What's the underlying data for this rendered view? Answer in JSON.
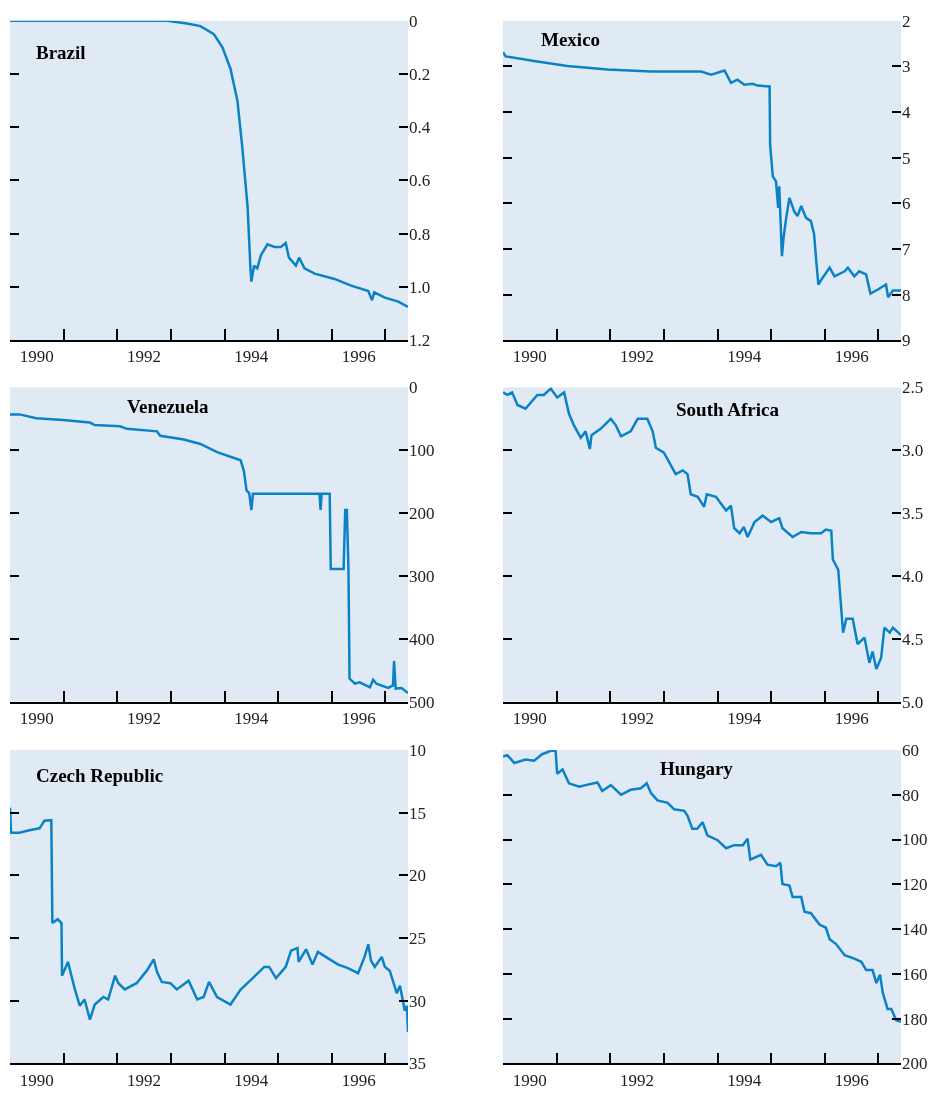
{
  "chart_data": [
    {
      "type": "line",
      "title": "Brazil",
      "x": [
        1990.0,
        1991.0,
        1992.0,
        1992.93,
        1993.3,
        1993.55,
        1993.8,
        1993.96,
        1994.11,
        1994.24,
        1994.33,
        1994.43,
        1994.48,
        1994.5,
        1994.55,
        1994.61,
        1994.68,
        1994.8,
        1994.93,
        1995.05,
        1995.14,
        1995.2,
        1995.33,
        1995.39,
        1995.49,
        1995.68,
        1996.05,
        1996.36,
        1996.68,
        1996.75,
        1996.79,
        1996.99,
        1997.24,
        1997.42
      ],
      "series": [
        {
          "color": "#0b82c6",
          "values": [
            0,
            0,
            0,
            0,
            0.01,
            0.02,
            0.05,
            0.1,
            0.18,
            0.3,
            0.475,
            0.7,
            0.92,
            0.98,
            0.92,
            0.93,
            0.88,
            0.84,
            0.85,
            0.85,
            0.835,
            0.89,
            0.92,
            0.89,
            0.93,
            0.95,
            0.97,
            0.995,
            1.015,
            1.05,
            1.02,
            1.04,
            1.055,
            1.075
          ]
        }
      ],
      "xlim": [
        1990,
        1997.42
      ],
      "ylim": [
        1.2,
        0
      ],
      "xticks": [
        {
          "value": 1990.5,
          "label": "1990"
        },
        {
          "value": 1992.5,
          "label": "1992"
        },
        {
          "value": 1994.5,
          "label": "1994"
        },
        {
          "value": 1996.5,
          "label": "1996"
        },
        {
          "value": 1990,
          "label": null
        },
        {
          "value": 1991,
          "label": null
        },
        {
          "value": 1992,
          "label": null
        },
        {
          "value": 1993,
          "label": null
        },
        {
          "value": 1994,
          "label": null
        },
        {
          "value": 1995,
          "label": null
        },
        {
          "value": 1996,
          "label": null
        },
        {
          "value": 1997,
          "label": null
        }
      ],
      "yticks": [
        0,
        0.2,
        0.4,
        0.6,
        0.8,
        {
          "value": 1.0,
          "label": "1.0"
        },
        {
          "value": 1.2,
          "label": "1.2"
        }
      ]
    },
    {
      "type": "line",
      "title": "Mexico",
      "x": [
        1990.0,
        1990.05,
        1990.58,
        1991.2,
        1991.95,
        1992.76,
        1993.69,
        1993.88,
        1994.13,
        1994.25,
        1994.37,
        1994.5,
        1994.65,
        1994.75,
        1994.97,
        1994.98,
        1995.03,
        1995.09,
        1995.13,
        1995.15,
        1995.2,
        1995.23,
        1995.28,
        1995.34,
        1995.43,
        1995.49,
        1995.56,
        1995.65,
        1995.74,
        1995.8,
        1995.84,
        1995.88,
        1995.96,
        1996.09,
        1996.18,
        1996.37,
        1996.43,
        1996.55,
        1996.64,
        1996.77,
        1996.85,
        1996.99,
        1997.14,
        1997.18,
        1997.27,
        1997.42
      ],
      "series": [
        {
          "color": "#0b82c6",
          "values": [
            2.69,
            2.78,
            2.88,
            2.99,
            3.07,
            3.11,
            3.11,
            3.18,
            3.09,
            3.36,
            3.29,
            3.4,
            3.38,
            3.42,
            3.44,
            4.72,
            5.41,
            5.52,
            6.1,
            5.63,
            7.16,
            6.76,
            6.32,
            5.88,
            6.18,
            6.28,
            6.06,
            6.32,
            6.39,
            6.68,
            7.27,
            7.78,
            7.63,
            7.41,
            7.6,
            7.49,
            7.41,
            7.6,
            7.49,
            7.56,
            7.98,
            7.89,
            7.78,
            8.06,
            7.91,
            7.91
          ]
        }
      ],
      "xlim": [
        1990,
        1997.42
      ],
      "ylim": [
        9,
        2
      ],
      "xticks": [
        {
          "value": 1990.5,
          "label": "1990"
        },
        {
          "value": 1992.5,
          "label": "1992"
        },
        {
          "value": 1994.5,
          "label": "1994"
        },
        {
          "value": 1996.5,
          "label": "1996"
        },
        {
          "value": 1990,
          "label": null
        },
        {
          "value": 1991,
          "label": null
        },
        {
          "value": 1992,
          "label": null
        },
        {
          "value": 1993,
          "label": null
        },
        {
          "value": 1994,
          "label": null
        },
        {
          "value": 1995,
          "label": null
        },
        {
          "value": 1996,
          "label": null
        },
        {
          "value": 1997,
          "label": null
        }
      ],
      "yticks": [
        2,
        3,
        4,
        5,
        6,
        7,
        8,
        9
      ]
    },
    {
      "type": "line",
      "title": "Venezuela",
      "x": [
        1990.0,
        1990.18,
        1990.49,
        1990.99,
        1991.49,
        1991.58,
        1992.05,
        1992.18,
        1992.74,
        1992.8,
        1993.24,
        1993.55,
        1993.86,
        1994.3,
        1994.36,
        1994.41,
        1994.46,
        1994.5,
        1994.53,
        1994.8,
        1995.77,
        1995.79,
        1995.81,
        1995.96,
        1995.98,
        1996.22,
        1996.25,
        1996.28,
        1996.31,
        1996.33,
        1996.43,
        1996.52,
        1996.71,
        1996.77,
        1996.83,
        1997.05,
        1997.14,
        1997.16,
        1997.19,
        1997.3,
        1997.42
      ],
      "series": [
        {
          "color": "#0b82c6",
          "values": [
            43,
            43,
            49,
            52,
            56,
            60,
            62,
            66,
            70,
            77,
            83,
            90,
            103,
            116,
            133,
            164,
            168,
            195,
            169,
            169,
            169,
            195,
            169,
            169,
            289,
            289,
            195,
            195,
            289,
            463,
            471,
            469,
            477,
            465,
            471,
            478,
            474,
            435,
            479,
            478,
            486
          ]
        }
      ],
      "xlim": [
        1990,
        1997.42
      ],
      "ylim": [
        500,
        0
      ],
      "xticks": [
        {
          "value": 1990.5,
          "label": "1990"
        },
        {
          "value": 1992.5,
          "label": "1992"
        },
        {
          "value": 1994.5,
          "label": "1994"
        },
        {
          "value": 1996.5,
          "label": "1996"
        },
        {
          "value": 1990,
          "label": null
        },
        {
          "value": 1991,
          "label": null
        },
        {
          "value": 1992,
          "label": null
        },
        {
          "value": 1993,
          "label": null
        },
        {
          "value": 1994,
          "label": null
        },
        {
          "value": 1995,
          "label": null
        },
        {
          "value": 1996,
          "label": null
        },
        {
          "value": 1997,
          "label": null
        }
      ],
      "yticks": [
        0,
        100,
        200,
        300,
        400,
        500
      ]
    },
    {
      "type": "line",
      "title": "South Africa",
      "x": [
        1990.0,
        1990.08,
        1990.17,
        1990.27,
        1990.42,
        1990.64,
        1990.76,
        1990.89,
        1991.01,
        1991.14,
        1991.23,
        1991.32,
        1991.45,
        1991.54,
        1991.62,
        1991.65,
        1991.82,
        1992.01,
        1992.1,
        1992.2,
        1992.38,
        1992.51,
        1992.69,
        1992.79,
        1992.85,
        1993.0,
        1993.13,
        1993.22,
        1993.35,
        1993.44,
        1993.5,
        1993.63,
        1993.75,
        1993.8,
        1993.97,
        1994.16,
        1994.25,
        1994.31,
        1994.41,
        1994.49,
        1994.56,
        1994.69,
        1994.84,
        1995.0,
        1995.15,
        1995.21,
        1995.4,
        1995.56,
        1995.74,
        1995.93,
        1996.02,
        1996.12,
        1996.15,
        1996.25,
        1996.34,
        1996.4,
        1996.52,
        1996.61,
        1996.74,
        1996.83,
        1996.89,
        1996.96,
        1997.05,
        1997.11,
        1997.21,
        1997.27,
        1997.42
      ],
      "series": [
        {
          "color": "#0b82c6",
          "values": [
            2.54,
            2.56,
            2.54,
            2.64,
            2.67,
            2.56,
            2.56,
            2.51,
            2.58,
            2.54,
            2.71,
            2.8,
            2.9,
            2.85,
            2.99,
            2.88,
            2.83,
            2.75,
            2.8,
            2.89,
            2.85,
            2.75,
            2.75,
            2.85,
            2.98,
            3.02,
            3.12,
            3.19,
            3.16,
            3.19,
            3.35,
            3.37,
            3.45,
            3.35,
            3.37,
            3.48,
            3.44,
            3.62,
            3.66,
            3.61,
            3.69,
            3.57,
            3.52,
            3.57,
            3.54,
            3.62,
            3.69,
            3.65,
            3.66,
            3.66,
            3.63,
            3.64,
            3.87,
            3.95,
            4.45,
            4.34,
            4.34,
            4.54,
            4.49,
            4.69,
            4.6,
            4.74,
            4.65,
            4.41,
            4.45,
            4.41,
            4.47
          ]
        }
      ],
      "xlim": [
        1990,
        1997.42
      ],
      "ylim": [
        5.0,
        2.5
      ],
      "xticks": [
        {
          "value": 1990.5,
          "label": "1990"
        },
        {
          "value": 1992.5,
          "label": "1992"
        },
        {
          "value": 1994.5,
          "label": "1994"
        },
        {
          "value": 1996.5,
          "label": "1996"
        },
        {
          "value": 1990,
          "label": null
        },
        {
          "value": 1991,
          "label": null
        },
        {
          "value": 1992,
          "label": null
        },
        {
          "value": 1993,
          "label": null
        },
        {
          "value": 1994,
          "label": null
        },
        {
          "value": 1995,
          "label": null
        },
        {
          "value": 1996,
          "label": null
        },
        {
          "value": 1997,
          "label": null
        }
      ],
      "yticks": [
        2.5,
        {
          "value": 3.0,
          "label": "3.0"
        },
        3.5,
        {
          "value": 4.0,
          "label": "4.0"
        },
        4.5,
        {
          "value": 5.0,
          "label": "5.0"
        }
      ]
    },
    {
      "type": "line",
      "title": "Czech Republic",
      "x": [
        1990.0,
        1990.02,
        1990.18,
        1990.36,
        1990.55,
        1990.64,
        1990.77,
        1990.79,
        1990.89,
        1990.96,
        1990.97,
        1991.08,
        1991.21,
        1991.3,
        1991.39,
        1991.49,
        1991.58,
        1991.74,
        1991.83,
        1991.96,
        1992.02,
        1992.14,
        1992.36,
        1992.55,
        1992.68,
        1992.74,
        1992.83,
        1992.99,
        1993.11,
        1993.33,
        1993.49,
        1993.61,
        1993.71,
        1993.86,
        1994.11,
        1994.3,
        1994.55,
        1994.74,
        1994.83,
        1994.96,
        1995.14,
        1995.24,
        1995.36,
        1995.38,
        1995.52,
        1995.64,
        1995.74,
        1995.96,
        1996.11,
        1996.3,
        1996.49,
        1996.61,
        1996.68,
        1996.73,
        1996.8,
        1996.93,
        1996.99,
        1997.08,
        1997.21,
        1997.27,
        1997.36,
        1997.4,
        1997.42
      ],
      "series": [
        {
          "color": "#0b82c6",
          "values": [
            14.6,
            16.6,
            16.6,
            16.4,
            16.25,
            15.65,
            15.6,
            23.8,
            23.5,
            23.8,
            28.0,
            26.9,
            29.1,
            30.4,
            29.9,
            31.5,
            30.3,
            29.7,
            29.9,
            28.0,
            28.6,
            29.1,
            28.6,
            27.6,
            26.7,
            27.7,
            28.5,
            28.6,
            29.1,
            28.4,
            29.9,
            29.7,
            28.5,
            29.7,
            30.3,
            29.1,
            28.1,
            27.3,
            27.3,
            28.2,
            27.3,
            26.0,
            25.8,
            26.9,
            25.9,
            27.1,
            26.1,
            26.7,
            27.1,
            27.4,
            27.8,
            26.5,
            25.5,
            26.8,
            27.3,
            26.5,
            27.3,
            27.6,
            29.4,
            28.8,
            30.8,
            30.4,
            32.5
          ]
        }
      ],
      "xlim": [
        1990,
        1997.42
      ],
      "ylim": [
        35,
        10
      ],
      "xticks": [
        {
          "value": 1990.5,
          "label": "1990"
        },
        {
          "value": 1992.5,
          "label": "1992"
        },
        {
          "value": 1994.5,
          "label": "1994"
        },
        {
          "value": 1996.5,
          "label": "1996"
        },
        {
          "value": 1990,
          "label": null
        },
        {
          "value": 1991,
          "label": null
        },
        {
          "value": 1992,
          "label": null
        },
        {
          "value": 1993,
          "label": null
        },
        {
          "value": 1994,
          "label": null
        },
        {
          "value": 1995,
          "label": null
        },
        {
          "value": 1996,
          "label": null
        },
        {
          "value": 1997,
          "label": null
        }
      ],
      "yticks": [
        10,
        15,
        20,
        25,
        30,
        35
      ]
    },
    {
      "type": "line",
      "title": "Hungary",
      "x": [
        1990.0,
        1990.08,
        1990.21,
        1990.42,
        1990.58,
        1990.73,
        1990.89,
        1990.98,
        1991.01,
        1991.11,
        1991.23,
        1991.42,
        1991.54,
        1991.76,
        1991.85,
        1992.01,
        1992.2,
        1992.38,
        1992.57,
        1992.68,
        1992.76,
        1992.88,
        1993.07,
        1993.19,
        1993.38,
        1993.44,
        1993.53,
        1993.62,
        1993.72,
        1993.81,
        1994.0,
        1994.16,
        1994.31,
        1994.47,
        1994.56,
        1994.61,
        1994.81,
        1994.93,
        1995.09,
        1995.17,
        1995.21,
        1995.34,
        1995.4,
        1995.56,
        1995.62,
        1995.74,
        1995.9,
        1996.02,
        1996.09,
        1996.21,
        1996.37,
        1996.55,
        1996.68,
        1996.77,
        1996.89,
        1996.96,
        1997.03,
        1997.08,
        1997.17,
        1997.24,
        1997.33,
        1997.42
      ],
      "series": [
        {
          "color": "#0b82c6",
          "values": [
            62.9,
            62.3,
            65.8,
            64.3,
            64.8,
            61.9,
            60.4,
            60.4,
            70.6,
            68.7,
            74.9,
            76.4,
            75.7,
            74.5,
            78.3,
            75.7,
            80.0,
            77.8,
            77.1,
            74.9,
            79.3,
            82.5,
            83.6,
            86.5,
            87.2,
            89.4,
            95.2,
            95.2,
            92.3,
            98.1,
            100.3,
            103.9,
            102.5,
            102.5,
            99.6,
            109.0,
            106.8,
            111.2,
            111.9,
            110.4,
            119.9,
            120.6,
            125.7,
            125.7,
            132.2,
            132.9,
            138.0,
            139.4,
            144.5,
            146.7,
            151.7,
            153.2,
            154.6,
            158.3,
            158.3,
            164.1,
            160.4,
            168.4,
            175.7,
            175.7,
            180.7,
            181.4
          ]
        }
      ],
      "xlim": [
        1990,
        1997.42
      ],
      "ylim": [
        200,
        60
      ],
      "xticks": [
        {
          "value": 1990.5,
          "label": "1990"
        },
        {
          "value": 1992.5,
          "label": "1992"
        },
        {
          "value": 1994.5,
          "label": "1994"
        },
        {
          "value": 1996.5,
          "label": "1996"
        },
        {
          "value": 1990,
          "label": null
        },
        {
          "value": 1991,
          "label": null
        },
        {
          "value": 1992,
          "label": null
        },
        {
          "value": 1993,
          "label": null
        },
        {
          "value": 1994,
          "label": null
        },
        {
          "value": 1995,
          "label": null
        },
        {
          "value": 1996,
          "label": null
        },
        {
          "value": 1997,
          "label": null
        }
      ],
      "yticks": [
        60,
        80,
        100,
        120,
        140,
        160,
        180,
        200
      ]
    }
  ]
}
